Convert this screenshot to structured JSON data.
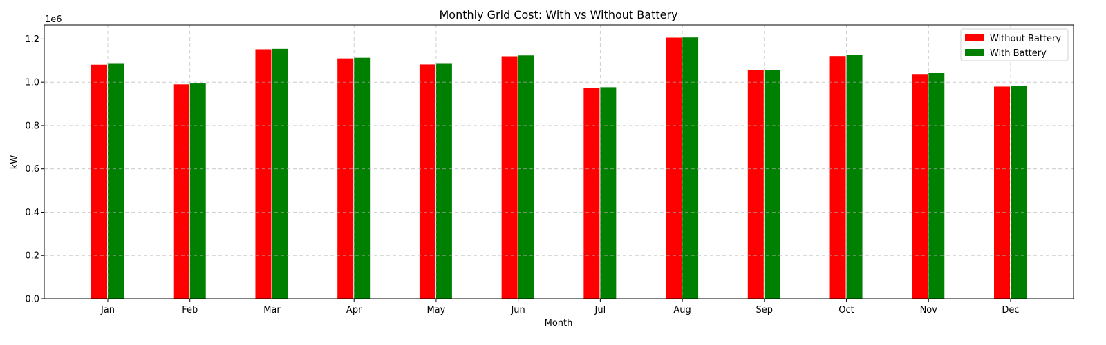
{
  "chart_data": {
    "type": "bar",
    "title": "Monthly Grid Cost: With vs Without Battery",
    "xlabel": "Month",
    "ylabel": "kW",
    "y_offset_label": "1e6",
    "categories": [
      "Jan",
      "Feb",
      "Mar",
      "Apr",
      "May",
      "Jun",
      "Jul",
      "Aug",
      "Sep",
      "Oct",
      "Nov",
      "Dec"
    ],
    "series": [
      {
        "name": "Without Battery",
        "color": "#ff0000",
        "values": [
          1.081,
          0.99,
          1.152,
          1.11,
          1.082,
          1.12,
          0.975,
          1.206,
          1.056,
          1.121,
          1.038,
          0.98
        ]
      },
      {
        "name": "With Battery",
        "color": "#008000",
        "values": [
          1.085,
          0.994,
          1.154,
          1.113,
          1.085,
          1.124,
          0.977,
          1.207,
          1.057,
          1.125,
          1.042,
          0.984
        ]
      }
    ],
    "ylim": [
      0,
      1.265
    ],
    "y_ticks": [
      "0.0",
      "0.2",
      "0.4",
      "0.6",
      "0.8",
      "1.0",
      "1.2"
    ],
    "y_tick_values": [
      0,
      0.2,
      0.4,
      0.6,
      0.8,
      1.0,
      1.2
    ],
    "grid": true,
    "legend_position": "top-right"
  }
}
